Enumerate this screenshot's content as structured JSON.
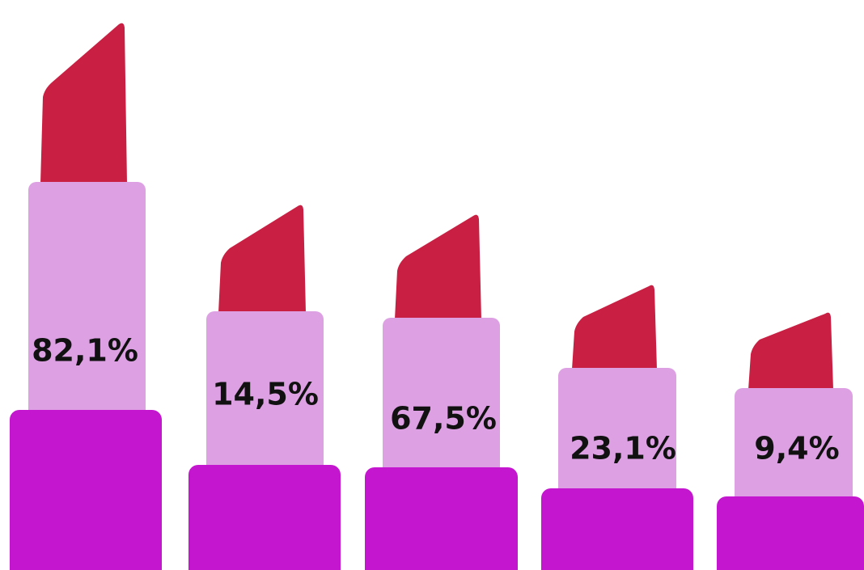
{
  "items": [
    {
      "label": "82,1%"
    },
    {
      "label": "14,5%"
    },
    {
      "label": "67,5%"
    },
    {
      "label": "23,1%"
    },
    {
      "label": "9,4%"
    }
  ]
}
